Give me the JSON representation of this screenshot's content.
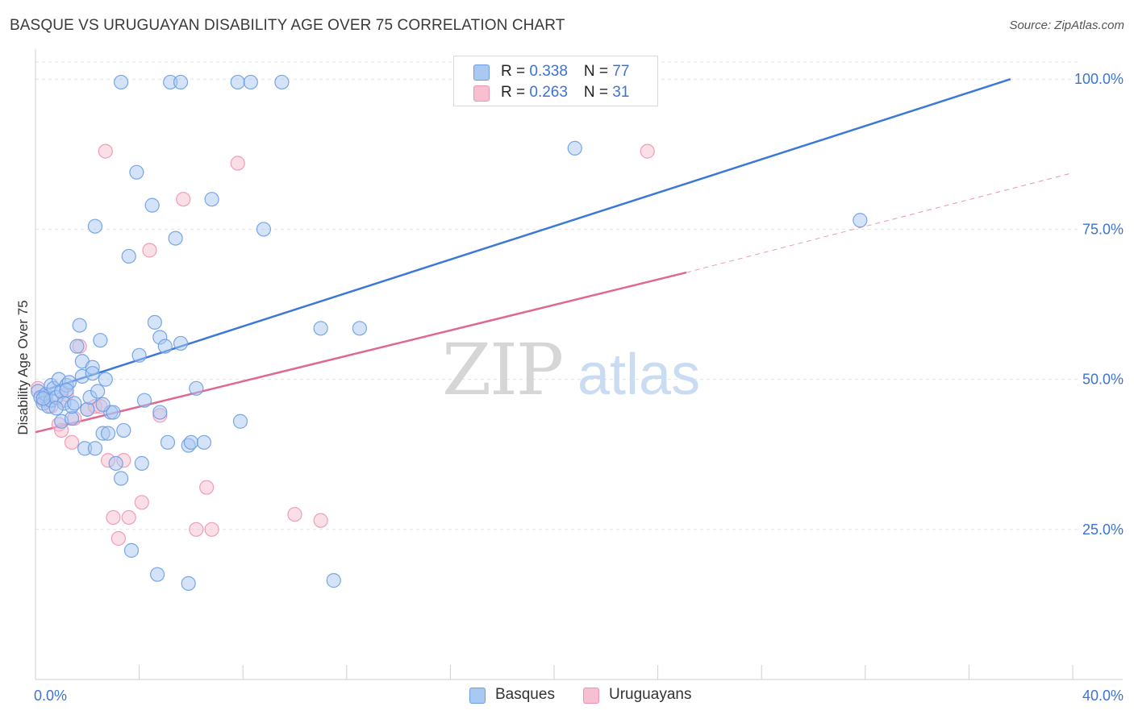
{
  "header": {
    "title": "BASQUE VS URUGUAYAN DISABILITY AGE OVER 75 CORRELATION CHART",
    "source": "Source: ZipAtlas.com"
  },
  "watermark": {
    "zip": "ZIP",
    "atlas": "atlas"
  },
  "legend": {
    "rows": [
      {
        "r_label": "R = ",
        "r_value": "0.338",
        "n_label": "N = ",
        "n_value": "77"
      },
      {
        "r_label": "R = ",
        "r_value": "0.263",
        "n_label": "N = ",
        "n_value": "31"
      }
    ]
  },
  "bottom_legend": {
    "basques": "Basques",
    "uruguayans": "Uruguayans"
  },
  "colors": {
    "basques_fill": "#a9c8f2",
    "basques_stroke": "#6a9de3",
    "basques_line": "#3b78d8",
    "uruguayans_fill": "#f7bfd0",
    "uruguayans_stroke": "#ee93b0",
    "uruguayans_line": "#e0678f",
    "tick_label": "#3b73d6",
    "grid": "#e2e2e2"
  },
  "chart_data": {
    "type": "scatter",
    "title": "BASQUE VS URUGUAYAN DISABILITY AGE OVER 75 CORRELATION CHART",
    "xlabel": "",
    "ylabel": "Disability Age Over 75",
    "xlim": [
      0,
      40
    ],
    "ylim": [
      0,
      105
    ],
    "x_tick_labels": [
      {
        "value": 0,
        "label": "0.0%"
      },
      {
        "value": 40,
        "label": "40.0%"
      }
    ],
    "y_tick_labels": [
      {
        "value": 25,
        "label": "25.0%"
      },
      {
        "value": 50,
        "label": "50.0%"
      },
      {
        "value": 75,
        "label": "75.0%"
      },
      {
        "value": 100,
        "label": "100.0%"
      }
    ],
    "grid": true,
    "legend_position": "top-center",
    "series": [
      {
        "name": "Basques",
        "r": 0.338,
        "n": 77,
        "trend": {
          "x": [
            0,
            37.6
          ],
          "y": [
            47.7,
            100
          ]
        },
        "points": [
          [
            0.1,
            48.0
          ],
          [
            0.2,
            47.0
          ],
          [
            0.3,
            46.0
          ],
          [
            0.4,
            47.5
          ],
          [
            0.5,
            45.5
          ],
          [
            0.6,
            46.5
          ],
          [
            0.6,
            49.0
          ],
          [
            0.7,
            48.5
          ],
          [
            0.8,
            47.0
          ],
          [
            0.9,
            50.0
          ],
          [
            1.0,
            48.0
          ],
          [
            1.0,
            43.0
          ],
          [
            1.1,
            46.0
          ],
          [
            1.2,
            49.0
          ],
          [
            1.3,
            49.5
          ],
          [
            1.4,
            43.5
          ],
          [
            1.4,
            45.5
          ],
          [
            1.5,
            46.0
          ],
          [
            1.6,
            55.5
          ],
          [
            1.7,
            59.0
          ],
          [
            1.8,
            50.5
          ],
          [
            1.8,
            53.0
          ],
          [
            1.9,
            38.5
          ],
          [
            2.0,
            45.0
          ],
          [
            2.1,
            47.0
          ],
          [
            2.2,
            52.0
          ],
          [
            2.3,
            38.5
          ],
          [
            2.2,
            51.0
          ],
          [
            2.3,
            75.5
          ],
          [
            2.4,
            48.0
          ],
          [
            2.5,
            56.5
          ],
          [
            2.6,
            41.0
          ],
          [
            2.7,
            50.0
          ],
          [
            2.8,
            41.0
          ],
          [
            2.9,
            44.5
          ],
          [
            3.0,
            44.5
          ],
          [
            3.1,
            36.0
          ],
          [
            3.3,
            33.5
          ],
          [
            3.3,
            99.5
          ],
          [
            3.4,
            41.5
          ],
          [
            3.6,
            70.5
          ],
          [
            3.7,
            21.5
          ],
          [
            3.9,
            84.5
          ],
          [
            4.0,
            54.0
          ],
          [
            4.1,
            36.0
          ],
          [
            4.2,
            46.5
          ],
          [
            4.5,
            79.0
          ],
          [
            4.6,
            59.5
          ],
          [
            4.7,
            17.5
          ],
          [
            4.8,
            57.0
          ],
          [
            4.8,
            44.5
          ],
          [
            5.0,
            55.5
          ],
          [
            5.1,
            39.5
          ],
          [
            5.2,
            99.5
          ],
          [
            5.4,
            73.5
          ],
          [
            5.6,
            99.5
          ],
          [
            5.6,
            56.0
          ],
          [
            5.9,
            16.0
          ],
          [
            5.9,
            39.0
          ],
          [
            6.0,
            39.5
          ],
          [
            6.2,
            48.5
          ],
          [
            6.5,
            39.5
          ],
          [
            6.8,
            80.0
          ],
          [
            7.8,
            99.5
          ],
          [
            7.9,
            43.0
          ],
          [
            8.3,
            99.5
          ],
          [
            8.8,
            75.0
          ],
          [
            9.5,
            99.5
          ],
          [
            11.0,
            58.5
          ],
          [
            11.5,
            16.5
          ],
          [
            12.5,
            58.5
          ],
          [
            20.8,
            88.5
          ],
          [
            31.8,
            76.5
          ],
          [
            0.3,
            46.8
          ],
          [
            1.2,
            48.2
          ],
          [
            2.6,
            45.8
          ],
          [
            0.8,
            45.2
          ]
        ]
      },
      {
        "name": "Uruguayans",
        "r": 0.263,
        "n": 31,
        "trend": {
          "x": [
            0,
            25.1,
            40
          ],
          "y": [
            41.2,
            67.8,
            84.4
          ],
          "solid_until_x": 25.1
        },
        "points": [
          [
            0.1,
            48.5
          ],
          [
            0.3,
            46.5
          ],
          [
            0.4,
            47.0
          ],
          [
            0.6,
            45.5
          ],
          [
            0.9,
            42.5
          ],
          [
            1.0,
            41.5
          ],
          [
            1.1,
            46.5
          ],
          [
            1.2,
            47.5
          ],
          [
            1.4,
            39.5
          ],
          [
            1.5,
            43.5
          ],
          [
            1.7,
            55.5
          ],
          [
            2.0,
            45.0
          ],
          [
            2.3,
            45.5
          ],
          [
            2.5,
            45.5
          ],
          [
            2.7,
            88.0
          ],
          [
            2.8,
            36.5
          ],
          [
            3.0,
            27.0
          ],
          [
            3.2,
            23.5
          ],
          [
            3.4,
            36.5
          ],
          [
            3.6,
            27.0
          ],
          [
            4.1,
            29.5
          ],
          [
            4.4,
            71.5
          ],
          [
            4.8,
            44.0
          ],
          [
            5.7,
            80.0
          ],
          [
            6.2,
            25.0
          ],
          [
            6.6,
            32.0
          ],
          [
            6.8,
            25.0
          ],
          [
            7.8,
            86.0
          ],
          [
            10.0,
            27.5
          ],
          [
            11.0,
            26.5
          ],
          [
            23.6,
            88.0
          ]
        ]
      }
    ]
  }
}
